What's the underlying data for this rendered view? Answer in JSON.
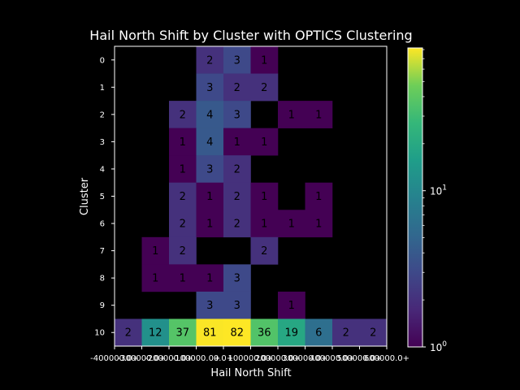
{
  "chart_data": {
    "type": "heatmap",
    "title": "Hail North Shift by Cluster with OPTICS Clustering",
    "xlabel": "Hail North Shift",
    "ylabel": "Cluster",
    "x_ticklabels": [
      "-400000.0+",
      "-300000.0+",
      "-200000.0+",
      "-100000.0+",
      "0.0+",
      "100000.0+",
      "200000.0+",
      "300000.0+",
      "400000.0+",
      "500000.0+",
      "600000.0+"
    ],
    "y_ticklabels": [
      "0",
      "1",
      "2",
      "3",
      "4",
      "5",
      "6",
      "7",
      "8",
      "9",
      "10"
    ],
    "colormap": "viridis",
    "color_scale": "log",
    "color_range": [
      1,
      82
    ],
    "colorbar_ticklabels": [
      {
        "base": "10",
        "exp": "0",
        "value": 1
      },
      {
        "base": "10",
        "exp": "1",
        "value": 10
      }
    ],
    "background": "#000000",
    "text_color": "#ffffff",
    "cells": [
      [
        null,
        null,
        null,
        2,
        3,
        1,
        null,
        null,
        null,
        null
      ],
      [
        null,
        null,
        null,
        3,
        2,
        2,
        null,
        null,
        null,
        null
      ],
      [
        null,
        null,
        2,
        4,
        3,
        null,
        1,
        1,
        null,
        null
      ],
      [
        null,
        null,
        1,
        4,
        1,
        1,
        null,
        null,
        null,
        null
      ],
      [
        null,
        null,
        1,
        3,
        2,
        null,
        null,
        null,
        null,
        null
      ],
      [
        null,
        null,
        2,
        1,
        2,
        1,
        null,
        1,
        null,
        null
      ],
      [
        null,
        null,
        2,
        1,
        2,
        1,
        1,
        1,
        null,
        null
      ],
      [
        null,
        1,
        2,
        null,
        null,
        2,
        null,
        null,
        null,
        null
      ],
      [
        null,
        1,
        1,
        1,
        3,
        null,
        null,
        null,
        null,
        null
      ],
      [
        null,
        null,
        null,
        3,
        3,
        null,
        1,
        null,
        null,
        null
      ],
      [
        2,
        12,
        37,
        81,
        82,
        36,
        19,
        6,
        2,
        2
      ]
    ]
  }
}
